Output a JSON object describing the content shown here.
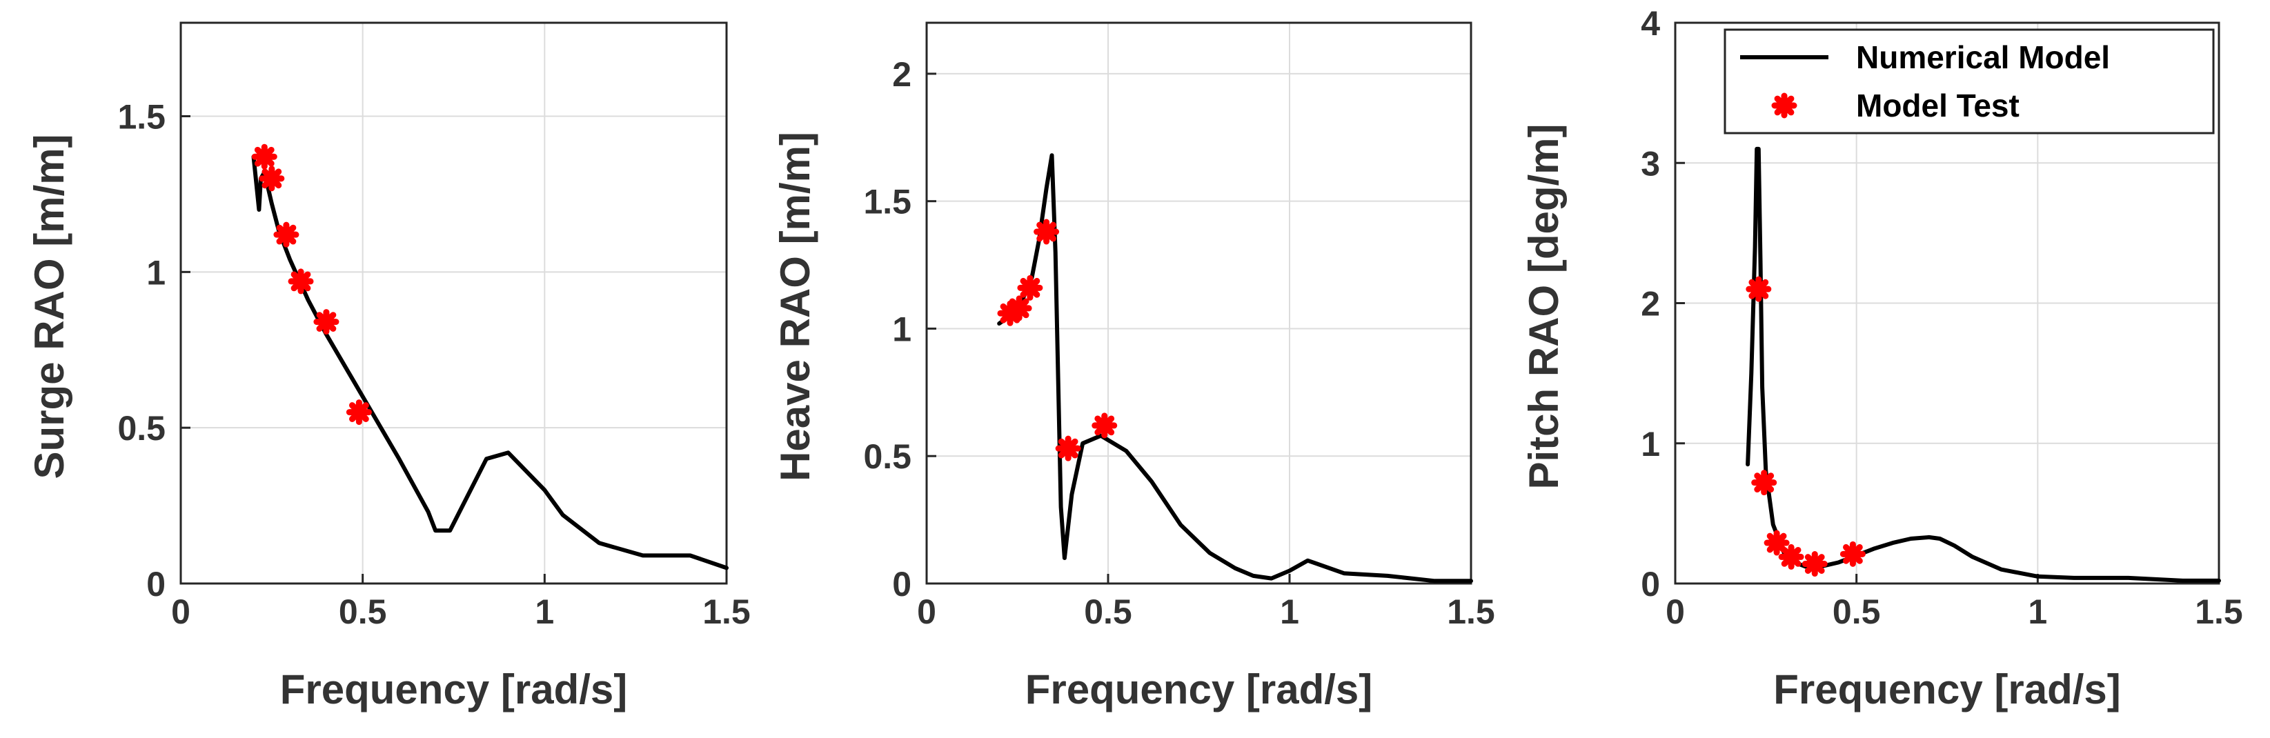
{
  "chart_data": [
    {
      "type": "line",
      "xlabel": "Frequency [rad/s]",
      "ylabel": "Surge RAO [m/m]",
      "xlim": [
        0,
        1.5
      ],
      "ylim": [
        0,
        1.8
      ],
      "xticks": [
        0,
        0.5,
        1,
        1.5
      ],
      "yticks": [
        0,
        0.5,
        1,
        1.5
      ],
      "xtick_labels": [
        "0",
        "0.5",
        "1",
        "1.5"
      ],
      "ytick_labels": [
        "0",
        "0.5",
        "1",
        "1.5"
      ],
      "grid": true,
      "series": [
        {
          "name": "Numerical Model",
          "style": "line",
          "color": "#000000",
          "x": [
            0.2,
            0.215,
            0.22,
            0.23,
            0.25,
            0.27,
            0.3,
            0.35,
            0.4,
            0.5,
            0.6,
            0.68,
            0.7,
            0.74,
            0.84,
            0.9,
            1.0,
            1.05,
            1.15,
            1.27,
            1.4,
            1.5
          ],
          "y": [
            1.37,
            1.2,
            1.3,
            1.32,
            1.22,
            1.13,
            1.04,
            0.91,
            0.8,
            0.6,
            0.4,
            0.23,
            0.17,
            0.17,
            0.4,
            0.42,
            0.3,
            0.22,
            0.13,
            0.09,
            0.09,
            0.05
          ]
        },
        {
          "name": "Model Test",
          "style": "markers",
          "color": "#ff0000",
          "x": [
            0.23,
            0.25,
            0.29,
            0.33,
            0.4,
            0.49
          ],
          "y": [
            1.37,
            1.3,
            1.12,
            0.97,
            0.84,
            0.55
          ]
        }
      ]
    },
    {
      "type": "line",
      "xlabel": "Frequency [rad/s]",
      "ylabel": "Heave RAO [m/m]",
      "xlim": [
        0,
        1.5
      ],
      "ylim": [
        0,
        2.2
      ],
      "xticks": [
        0,
        0.5,
        1,
        1.5
      ],
      "yticks": [
        0,
        0.5,
        1,
        1.5,
        2
      ],
      "xtick_labels": [
        "0",
        "0.5",
        "1",
        "1.5"
      ],
      "ytick_labels": [
        "0",
        "0.5",
        "1",
        "1.5",
        "2"
      ],
      "grid": true,
      "series": [
        {
          "name": "Numerical Model",
          "style": "line",
          "color": "#000000",
          "x": [
            0.2,
            0.23,
            0.26,
            0.29,
            0.31,
            0.33,
            0.345,
            0.355,
            0.37,
            0.38,
            0.4,
            0.43,
            0.48,
            0.55,
            0.62,
            0.7,
            0.78,
            0.85,
            0.9,
            0.95,
            1.0,
            1.05,
            1.15,
            1.27,
            1.4,
            1.5
          ],
          "y": [
            1.02,
            1.05,
            1.1,
            1.2,
            1.35,
            1.55,
            1.68,
            1.3,
            0.3,
            0.1,
            0.35,
            0.55,
            0.58,
            0.52,
            0.4,
            0.23,
            0.12,
            0.06,
            0.03,
            0.02,
            0.05,
            0.09,
            0.04,
            0.03,
            0.01,
            0.01
          ]
        },
        {
          "name": "Model Test",
          "style": "markers",
          "color": "#ff0000",
          "x": [
            0.23,
            0.255,
            0.285,
            0.33,
            0.39,
            0.49
          ],
          "y": [
            1.06,
            1.08,
            1.16,
            1.38,
            0.53,
            0.62
          ]
        }
      ]
    },
    {
      "type": "line",
      "xlabel": "Frequency [rad/s]",
      "ylabel": "Pitch RAO [deg/m]",
      "xlim": [
        0,
        1.5
      ],
      "ylim": [
        0,
        4
      ],
      "xticks": [
        0,
        0.5,
        1,
        1.5
      ],
      "yticks": [
        0,
        1,
        2,
        3,
        4
      ],
      "xtick_labels": [
        "0",
        "0.5",
        "1",
        "1.5"
      ],
      "ytick_labels": [
        "0",
        "1",
        "2",
        "3",
        "4"
      ],
      "grid": true,
      "legend": "top-right",
      "legend_entries": [
        {
          "label": "Numerical Model",
          "style": "line",
          "color": "#000000"
        },
        {
          "label": "Model Test",
          "style": "markers",
          "color": "#ff0000"
        }
      ],
      "series": [
        {
          "name": "Numerical Model",
          "style": "line",
          "color": "#000000",
          "x": [
            0.2,
            0.21,
            0.22,
            0.225,
            0.23,
            0.235,
            0.24,
            0.25,
            0.27,
            0.3,
            0.33,
            0.36,
            0.4,
            0.45,
            0.5,
            0.55,
            0.6,
            0.65,
            0.7,
            0.73,
            0.77,
            0.82,
            0.9,
            1.0,
            1.1,
            1.25,
            1.4,
            1.5
          ],
          "y": [
            0.85,
            1.5,
            2.4,
            3.1,
            3.1,
            2.3,
            1.4,
            0.8,
            0.42,
            0.22,
            0.15,
            0.12,
            0.12,
            0.15,
            0.2,
            0.25,
            0.29,
            0.32,
            0.33,
            0.32,
            0.27,
            0.19,
            0.1,
            0.05,
            0.04,
            0.04,
            0.02,
            0.02
          ]
        },
        {
          "name": "Model Test",
          "style": "markers",
          "color": "#ff0000",
          "x": [
            0.23,
            0.245,
            0.28,
            0.32,
            0.385,
            0.49
          ],
          "y": [
            2.1,
            0.72,
            0.29,
            0.19,
            0.14,
            0.21
          ]
        }
      ]
    }
  ]
}
